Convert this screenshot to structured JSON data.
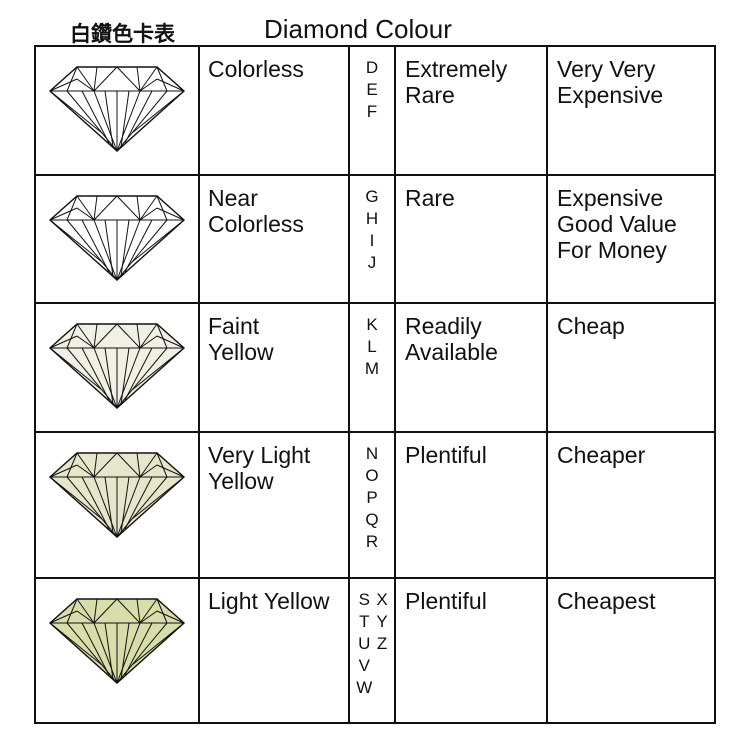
{
  "header": {
    "cn_title": "白鑽色卡表",
    "title": "Diamond Colour"
  },
  "rows": [
    {
      "fill": "#ffffff",
      "description": "Colorless",
      "grade_cols": [
        [
          "D",
          "E",
          "F"
        ]
      ],
      "availability": "Extremely\nRare",
      "price": "Very Very\nExpensive"
    },
    {
      "fill": "#ffffff",
      "description": "Near\nColorless",
      "grade_cols": [
        [
          "G",
          "H",
          "I",
          "J"
        ]
      ],
      "availability": "Rare",
      "price": "Expensive\nGood Value\nFor Money"
    },
    {
      "fill": "#f1f0e4",
      "description": "Faint\nYellow",
      "grade_cols": [
        [
          "K",
          "L",
          "M"
        ]
      ],
      "availability": "Readily\nAvailable",
      "price": "Cheap"
    },
    {
      "fill": "#e6e6cb",
      "description": "Very Light\nYellow",
      "grade_cols": [
        [
          "N",
          "O",
          "P",
          "Q",
          "R"
        ]
      ],
      "availability": "Plentiful",
      "price": "Cheaper"
    },
    {
      "fill": "#d8deaa",
      "description": "Light Yellow",
      "grade_cols": [
        [
          "S",
          "T",
          "U",
          "V",
          "W"
        ],
        [
          "X",
          "Y",
          "Z"
        ]
      ],
      "availability": "Plentiful",
      "price": "Cheapest"
    }
  ],
  "icons": {
    "gem": "diamond-icon"
  }
}
